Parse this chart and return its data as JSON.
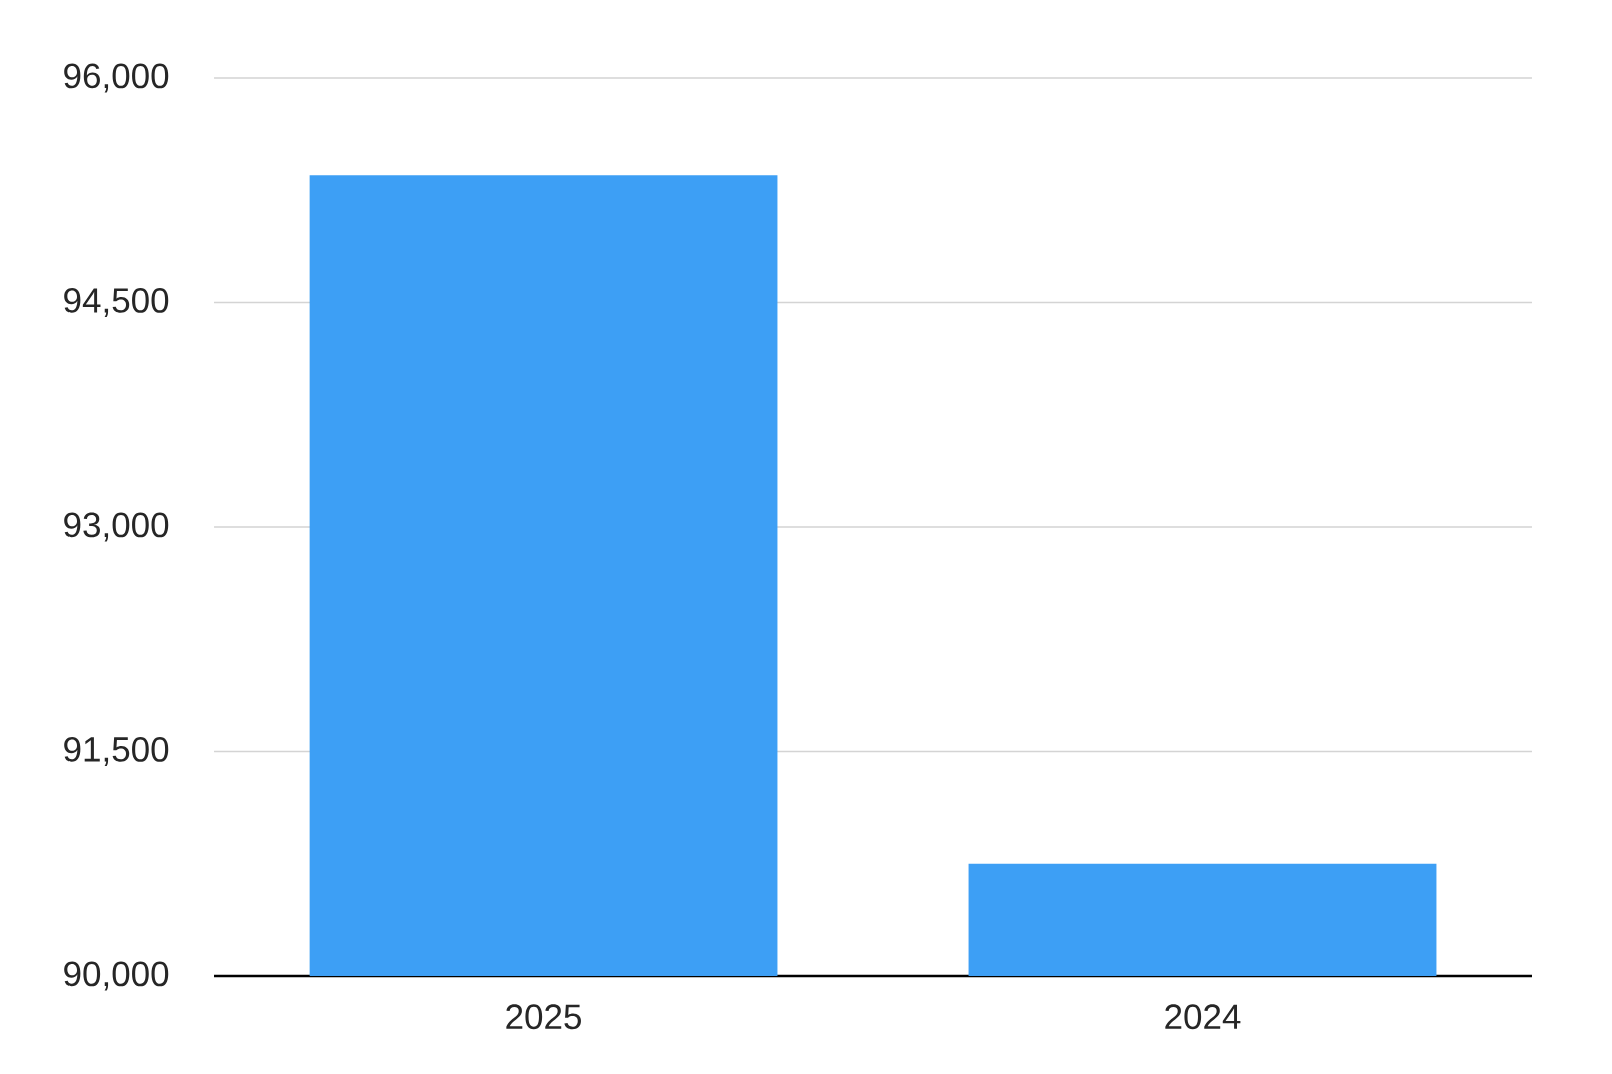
{
  "chart_data": {
    "type": "bar",
    "categories": [
      "2025",
      "2024"
    ],
    "values": [
      95350,
      90750
    ],
    "color": "#3d9ff5",
    "ylim": [
      90000,
      96000
    ],
    "yticks": [
      {
        "value": 90000,
        "label": "90,000"
      },
      {
        "value": 91500,
        "label": "91,500"
      },
      {
        "value": 93000,
        "label": "93,000"
      },
      {
        "value": 94500,
        "label": "94,500"
      },
      {
        "value": 96000,
        "label": "96,000"
      }
    ],
    "grid": "y"
  }
}
